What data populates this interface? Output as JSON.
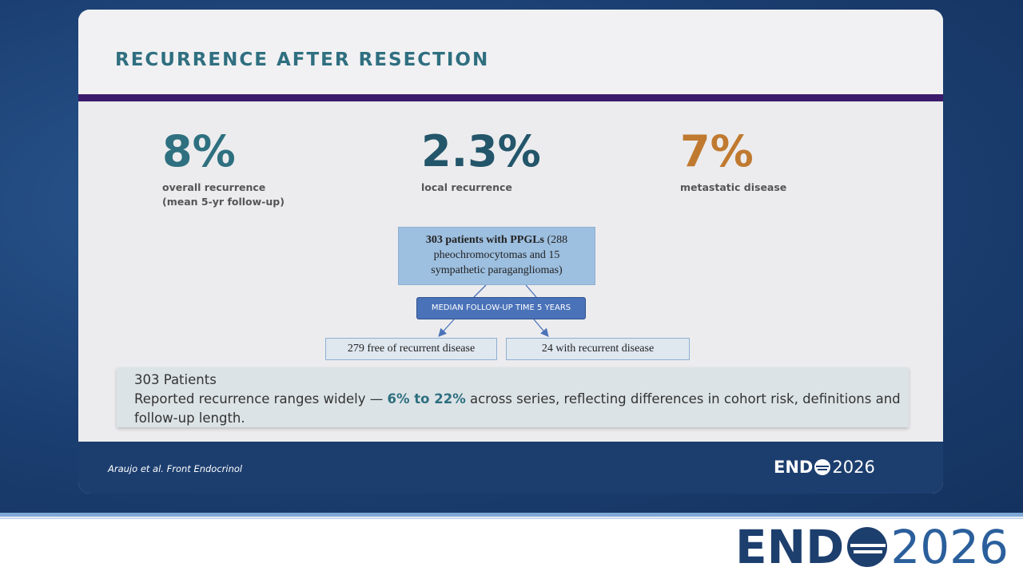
{
  "slide": {
    "title": "RECURRENCE AFTER RESECTION",
    "stats": [
      {
        "value": "8%",
        "label_lines": [
          "overall recurrence",
          "(mean 5-yr follow-up)"
        ]
      },
      {
        "value": "2.3%",
        "label_lines": [
          "local recurrence"
        ]
      },
      {
        "value": "7%",
        "label_lines": [
          "metastatic disease"
        ]
      }
    ],
    "flowchart": {
      "top": {
        "bold": "303 patients with PPGLs",
        "rest": " (288 pheochromocytomas and 15 sympathetic paragangliomas)"
      },
      "middle": "MEDIAN FOLLOW-UP TIME 5 YEARS",
      "left": "279 free of recurrent disease",
      "right": "24 with recurrent disease"
    },
    "note": {
      "heading": "303 Patients",
      "before": "Reported recurrence ranges widely — ",
      "bold": "6% to 22%",
      "after": " across series, reflecting differences in cohort risk, definitions and follow-up length."
    },
    "citation": "Araujo et al. Front Endocrinol",
    "logo": {
      "left": "END",
      "right": "2026"
    }
  }
}
